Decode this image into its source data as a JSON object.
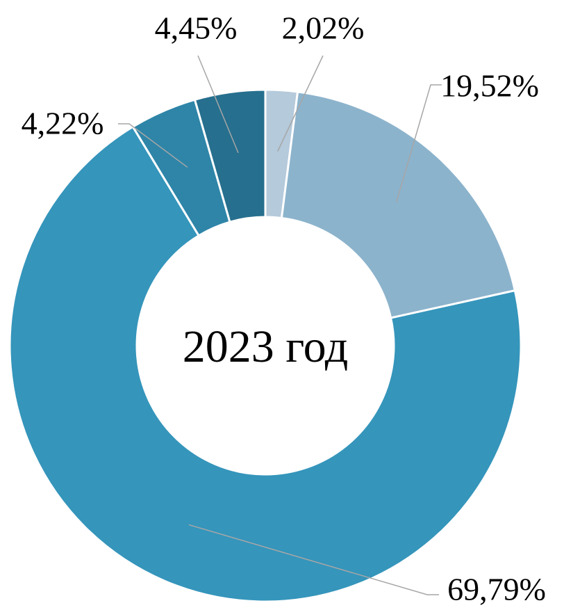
{
  "chart_data": {
    "type": "donut",
    "center_label": "2023 год",
    "values": [
      2.02,
      19.52,
      69.79,
      4.22,
      4.45
    ],
    "value_labels": [
      "2,02%",
      "19,52%",
      "69,79%",
      "4,22%",
      "4,45%"
    ],
    "colors": [
      "#b5cadb",
      "#8cb3cc",
      "#3595bb",
      "#2e85a8",
      "#266f8e"
    ]
  }
}
